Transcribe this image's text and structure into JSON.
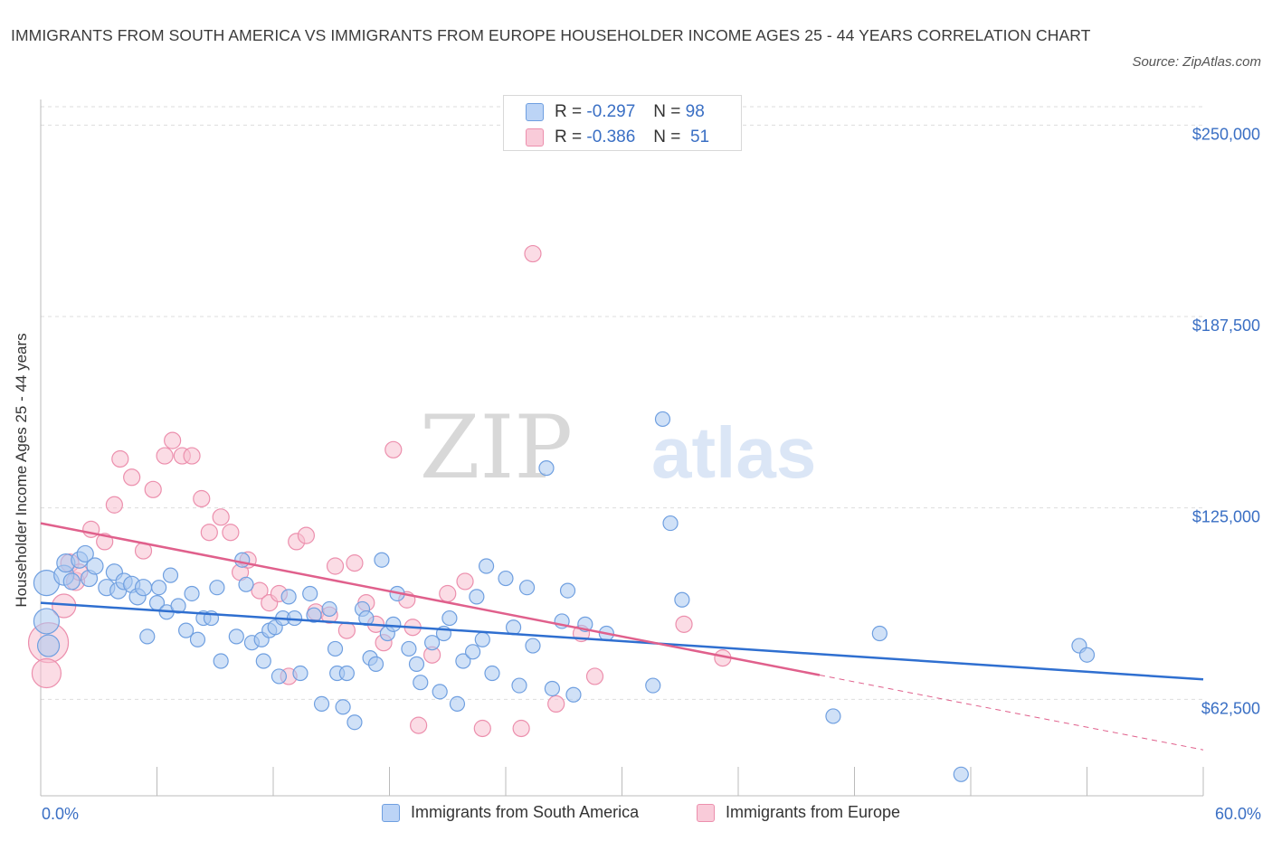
{
  "title": "IMMIGRANTS FROM SOUTH AMERICA VS IMMIGRANTS FROM EUROPE HOUSEHOLDER INCOME AGES 25 - 44 YEARS CORRELATION CHART",
  "source": "Source: ZipAtlas.com",
  "watermark": {
    "zip": "ZIP",
    "atlas": "atlas"
  },
  "colors": {
    "blue_fill": "#a9c8f0",
    "blue_stroke": "#6f9fe0",
    "blue_line": "#2f6fd0",
    "pink_fill": "#f7bfd0",
    "pink_stroke": "#ec8fad",
    "pink_line": "#e0608c",
    "axis_label": "#3a6fc4",
    "grid": "#dddddd"
  },
  "stats_legend": [
    {
      "r_label": "R =",
      "r_value": "-0.297",
      "n_label": "N =",
      "n_value": "98",
      "color": "blue"
    },
    {
      "r_label": "R =",
      "r_value": "-0.386",
      "n_label": "N =",
      "n_value": "51",
      "color": "pink"
    }
  ],
  "chart_data": {
    "type": "scatter",
    "title": "IMMIGRANTS FROM SOUTH AMERICA VS IMMIGRANTS FROM EUROPE HOUSEHOLDER INCOME AGES 25 - 44 YEARS CORRELATION CHART",
    "xlabel": "",
    "ylabel": "Householder Income Ages 25 - 44 years",
    "xlim": [
      0,
      60
    ],
    "ylim": [
      31000,
      256000
    ],
    "x_tick_labels": [
      "0.0%",
      "60.0%"
    ],
    "y_ticks": [
      62500,
      125000,
      187500,
      250000
    ],
    "y_tick_labels": [
      "$62,500",
      "$125,000",
      "$187,500",
      "$250,000"
    ],
    "grid": true,
    "legend_position": "bottom",
    "series": [
      {
        "name": "Immigrants from South America",
        "color": "blue",
        "trend": {
          "x": [
            0,
            60
          ],
          "y": [
            94000,
            69000
          ],
          "dashed_from": null
        },
        "points": [
          [
            0.3,
            100500,
            14
          ],
          [
            0.3,
            88000,
            14
          ],
          [
            0.4,
            80000,
            12
          ],
          [
            1.2,
            103000,
            11
          ],
          [
            1.3,
            107000,
            10
          ],
          [
            1.6,
            101000,
            9
          ],
          [
            2.0,
            108000,
            9
          ],
          [
            2.3,
            110000,
            9
          ],
          [
            2.5,
            102000,
            9
          ],
          [
            2.8,
            106000,
            9
          ],
          [
            3.4,
            99000,
            9
          ],
          [
            3.8,
            104000,
            9
          ],
          [
            4.0,
            98000,
            9
          ],
          [
            4.3,
            101000,
            9
          ],
          [
            4.7,
            100000,
            9
          ],
          [
            5.0,
            96000,
            9
          ],
          [
            5.3,
            99000,
            9
          ],
          [
            5.5,
            83000,
            8
          ],
          [
            6.0,
            94000,
            8
          ],
          [
            6.1,
            99000,
            8
          ],
          [
            6.5,
            91000,
            8
          ],
          [
            6.7,
            103000,
            8
          ],
          [
            7.1,
            93000,
            8
          ],
          [
            7.5,
            85000,
            8
          ],
          [
            7.8,
            97000,
            8
          ],
          [
            8.1,
            82000,
            8
          ],
          [
            8.4,
            89000,
            8
          ],
          [
            8.8,
            89000,
            8
          ],
          [
            9.1,
            99000,
            8
          ],
          [
            9.3,
            75000,
            8
          ],
          [
            10.1,
            83000,
            8
          ],
          [
            10.4,
            108000,
            8
          ],
          [
            10.6,
            100000,
            8
          ],
          [
            10.9,
            81000,
            8
          ],
          [
            11.4,
            82000,
            8
          ],
          [
            11.5,
            75000,
            8
          ],
          [
            11.8,
            85000,
            8
          ],
          [
            12.1,
            86000,
            8
          ],
          [
            12.3,
            70000,
            8
          ],
          [
            12.5,
            89000,
            8
          ],
          [
            12.8,
            96000,
            8
          ],
          [
            13.1,
            89000,
            8
          ],
          [
            13.4,
            71000,
            8
          ],
          [
            13.9,
            97000,
            8
          ],
          [
            14.1,
            90000,
            8
          ],
          [
            14.5,
            61000,
            8
          ],
          [
            14.9,
            92000,
            8
          ],
          [
            15.2,
            79000,
            8
          ],
          [
            15.3,
            71000,
            8
          ],
          [
            15.6,
            60000,
            8
          ],
          [
            15.8,
            71000,
            8
          ],
          [
            16.2,
            55000,
            8
          ],
          [
            16.6,
            92000,
            8
          ],
          [
            16.8,
            89000,
            8
          ],
          [
            17.0,
            76000,
            8
          ],
          [
            17.3,
            74000,
            8
          ],
          [
            17.6,
            108000,
            8
          ],
          [
            17.9,
            84000,
            8
          ],
          [
            18.2,
            87000,
            8
          ],
          [
            18.4,
            97000,
            8
          ],
          [
            19.0,
            79000,
            8
          ],
          [
            19.4,
            74000,
            8
          ],
          [
            19.6,
            68000,
            8
          ],
          [
            20.2,
            81000,
            8
          ],
          [
            20.6,
            65000,
            8
          ],
          [
            20.8,
            84000,
            8
          ],
          [
            21.1,
            89000,
            8
          ],
          [
            21.5,
            61000,
            8
          ],
          [
            21.8,
            75000,
            8
          ],
          [
            22.3,
            78000,
            8
          ],
          [
            22.5,
            96000,
            8
          ],
          [
            22.8,
            82000,
            8
          ],
          [
            23.0,
            106000,
            8
          ],
          [
            23.3,
            71000,
            8
          ],
          [
            24.0,
            102000,
            8
          ],
          [
            24.4,
            86000,
            8
          ],
          [
            24.7,
            67000,
            8
          ],
          [
            25.1,
            99000,
            8
          ],
          [
            25.4,
            80000,
            8
          ],
          [
            26.1,
            138000,
            8
          ],
          [
            26.4,
            66000,
            8
          ],
          [
            26.9,
            88000,
            8
          ],
          [
            27.2,
            98000,
            8
          ],
          [
            27.5,
            64000,
            8
          ],
          [
            28.1,
            87000,
            8
          ],
          [
            29.2,
            84000,
            8
          ],
          [
            31.6,
            67000,
            8
          ],
          [
            32.1,
            154000,
            8
          ],
          [
            32.5,
            120000,
            8
          ],
          [
            33.1,
            95000,
            8
          ],
          [
            40.9,
            57000,
            8
          ],
          [
            43.3,
            84000,
            8
          ],
          [
            47.5,
            38000,
            8
          ],
          [
            53.6,
            80000,
            8
          ],
          [
            54.0,
            77000,
            8
          ]
        ]
      },
      {
        "name": "Immigrants from Europe",
        "color": "pink",
        "trend": {
          "x": [
            0,
            60
          ],
          "y": [
            120000,
            46000
          ],
          "dashed_from": 40.2
        },
        "points": [
          [
            0.4,
            81000,
            22
          ],
          [
            0.3,
            71000,
            16
          ],
          [
            1.2,
            93000,
            13
          ],
          [
            1.5,
            107000,
            10
          ],
          [
            1.8,
            101000,
            10
          ],
          [
            2.0,
            104000,
            9
          ],
          [
            2.6,
            118000,
            9
          ],
          [
            3.3,
            114000,
            9
          ],
          [
            3.8,
            126000,
            9
          ],
          [
            4.1,
            141000,
            9
          ],
          [
            4.7,
            135000,
            9
          ],
          [
            5.3,
            111000,
            9
          ],
          [
            5.8,
            131000,
            9
          ],
          [
            6.4,
            142000,
            9
          ],
          [
            6.8,
            147000,
            9
          ],
          [
            7.3,
            142000,
            9
          ],
          [
            7.8,
            142000,
            9
          ],
          [
            8.3,
            128000,
            9
          ],
          [
            8.7,
            117000,
            9
          ],
          [
            9.3,
            122000,
            9
          ],
          [
            9.8,
            117000,
            9
          ],
          [
            10.3,
            104000,
            9
          ],
          [
            10.7,
            108000,
            9
          ],
          [
            11.3,
            98000,
            9
          ],
          [
            11.8,
            94000,
            9
          ],
          [
            12.3,
            97000,
            9
          ],
          [
            12.8,
            70000,
            9
          ],
          [
            13.2,
            114000,
            9
          ],
          [
            13.7,
            116000,
            9
          ],
          [
            14.2,
            91000,
            9
          ],
          [
            14.9,
            90000,
            9
          ],
          [
            15.2,
            106000,
            9
          ],
          [
            15.8,
            85000,
            9
          ],
          [
            16.2,
            107000,
            9
          ],
          [
            16.8,
            94000,
            9
          ],
          [
            17.3,
            87000,
            9
          ],
          [
            17.7,
            81000,
            9
          ],
          [
            18.2,
            144000,
            9
          ],
          [
            18.9,
            95000,
            9
          ],
          [
            19.2,
            86000,
            9
          ],
          [
            19.5,
            54000,
            9
          ],
          [
            20.2,
            77000,
            9
          ],
          [
            21.0,
            97000,
            9
          ],
          [
            21.9,
            101000,
            9
          ],
          [
            22.8,
            53000,
            9
          ],
          [
            24.8,
            53000,
            9
          ],
          [
            25.4,
            208000,
            9
          ],
          [
            26.6,
            61000,
            9
          ],
          [
            27.9,
            84000,
            9
          ],
          [
            28.6,
            70000,
            9
          ],
          [
            33.2,
            87000,
            9
          ],
          [
            35.2,
            76000,
            9
          ]
        ]
      }
    ]
  },
  "legend_bottom": [
    {
      "label": "Immigrants from South America",
      "color": "blue"
    },
    {
      "label": "Immigrants from Europe",
      "color": "pink"
    }
  ]
}
